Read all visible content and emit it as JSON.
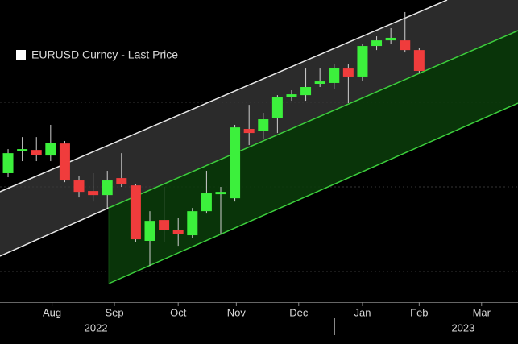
{
  "chart_data": {
    "type": "candlestick",
    "series": [
      {
        "name": "EURUSD Curncy - Last Price"
      }
    ],
    "up_color": "#3cf03c",
    "down_color": "#f03c3c",
    "open": [
      1.0083,
      1.0216,
      1.022,
      1.0187,
      1.0258,
      1.004,
      0.9978,
      0.9954,
      1.0054,
      1.0011,
      0.9684,
      0.9807,
      0.975,
      0.9717,
      0.9859,
      0.9959,
      0.9935,
      1.0344,
      1.033,
      1.0406,
      1.0534,
      1.0543,
      1.061,
      1.0615,
      1.07,
      1.0653,
      1.0833,
      1.0866,
      1.0866,
      1.0809
    ],
    "high": [
      1.0225,
      1.0296,
      1.0296,
      1.0368,
      1.0273,
      1.0068,
      1.0083,
      1.0097,
      1.0201,
      1.0021,
      0.9859,
      1.0002,
      0.9821,
      0.9878,
      1.0097,
      1.0002,
      1.0368,
      1.0486,
      1.0439,
      1.0543,
      1.0572,
      1.07,
      1.07,
      1.0724,
      1.0724,
      1.0843,
      1.089,
      1.0938,
      1.1033,
      1.0819
    ],
    "low": [
      1.0059,
      1.0154,
      1.0154,
      1.0154,
      1.003,
      0.994,
      0.9916,
      0.9878,
      1.0002,
      0.9679,
      0.9536,
      0.9679,
      0.9655,
      0.9703,
      0.9845,
      0.9726,
      0.9916,
      1.0249,
      1.0287,
      1.032,
      1.051,
      1.051,
      1.0591,
      1.0581,
      1.0496,
      1.0629,
      1.0809,
      1.0843,
      1.0795,
      1.0676
    ],
    "close": [
      1.0201,
      1.0225,
      1.0192,
      1.0263,
      1.004,
      0.9973,
      0.9954,
      1.004,
      1.0021,
      0.9693,
      0.9802,
      0.975,
      0.9726,
      0.9859,
      0.9964,
      0.9973,
      1.0353,
      1.032,
      1.0401,
      1.0534,
      1.0548,
      1.0591,
      1.0624,
      1.0705,
      1.0653,
      1.0833,
      1.0866,
      1.0881,
      1.0809,
      1.0686
    ],
    "ylim": [
      0.9323,
      1.1104
    ],
    "xlim": [
      -0.57,
      35.97
    ],
    "xticks": [
      {
        "value": 3.1,
        "label": "Aug"
      },
      {
        "value": 7.5,
        "label": "Sep"
      },
      {
        "value": 12.0,
        "label": "Oct"
      },
      {
        "value": 16.1,
        "label": "Nov"
      },
      {
        "value": 20.5,
        "label": "Dec"
      },
      {
        "value": 25.0,
        "label": "Jan"
      },
      {
        "value": 29.0,
        "label": "Feb"
      },
      {
        "value": 33.4,
        "label": "Mar"
      }
    ],
    "year_ticks": [
      {
        "value": 6.2,
        "label": "2022"
      },
      {
        "value": 32.1,
        "label": "2023"
      }
    ]
  }
}
